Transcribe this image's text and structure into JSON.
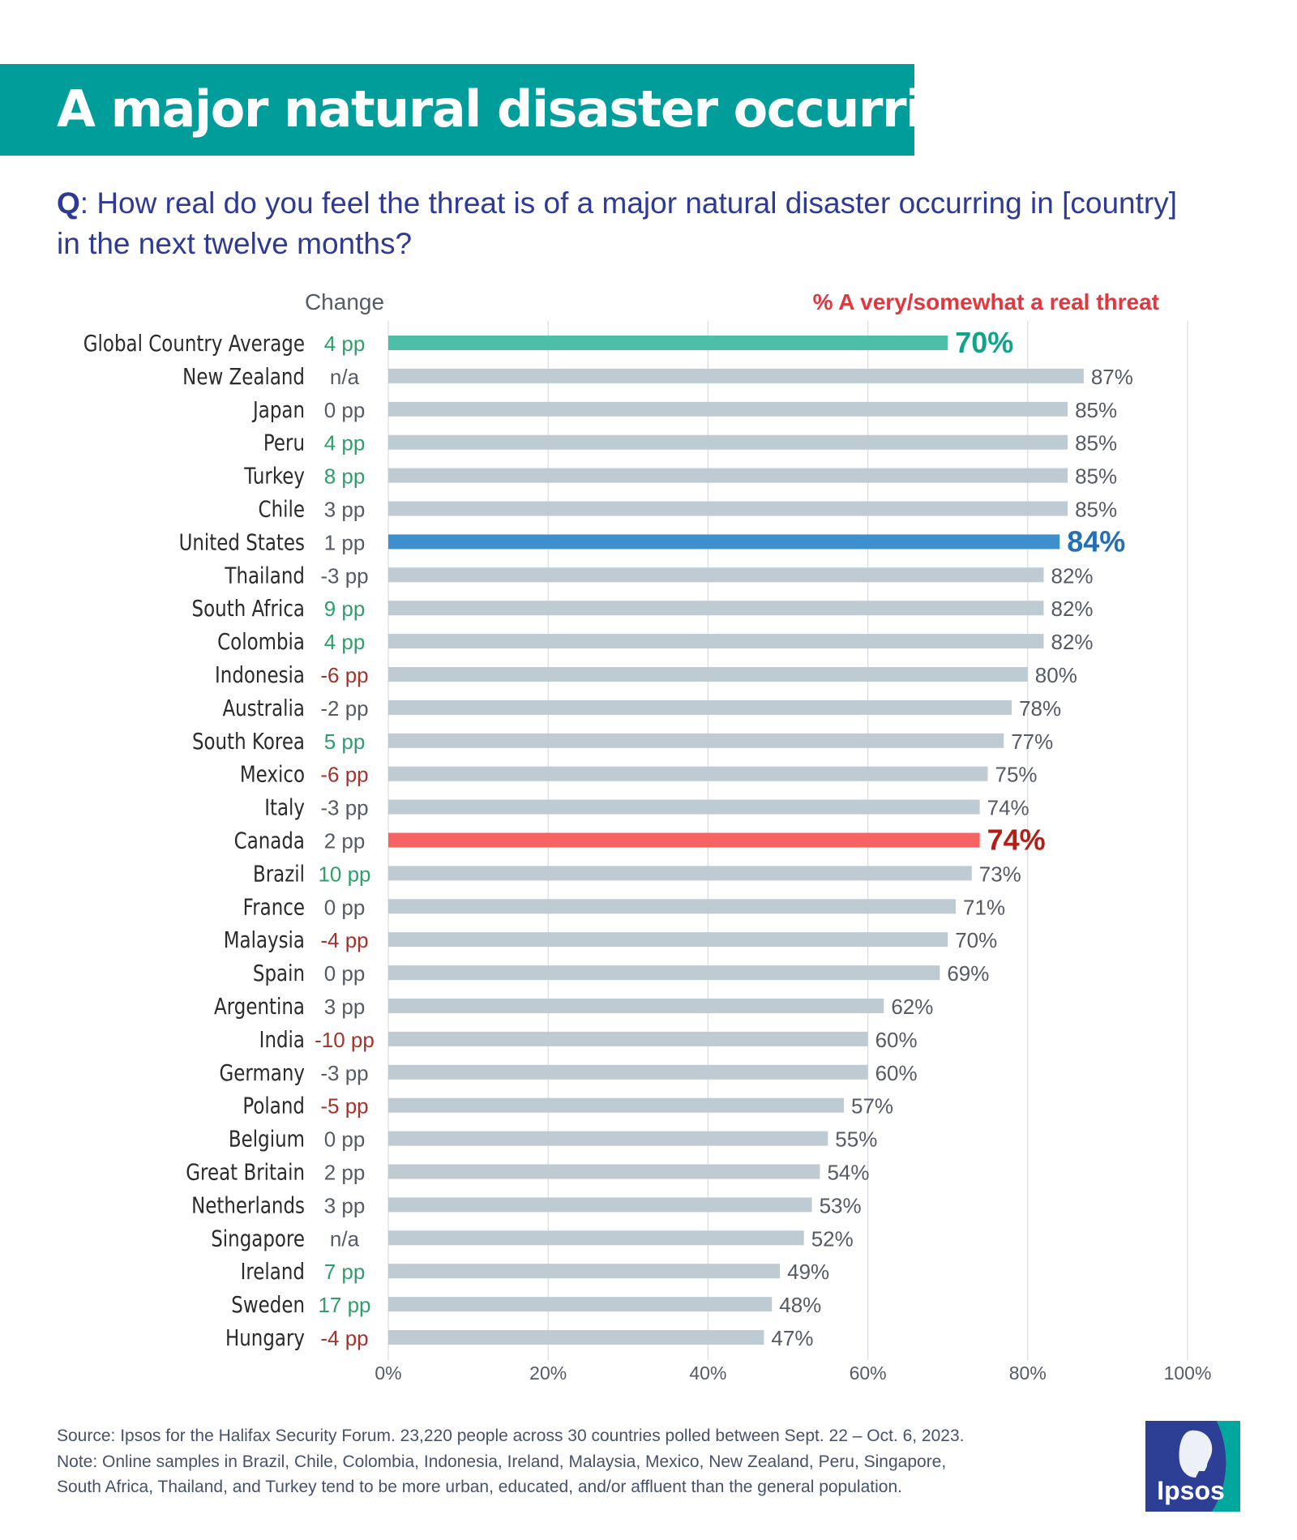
{
  "header": {
    "title": "A major natural disaster occurring"
  },
  "question": {
    "prefix": "Q",
    "text": ": How real do you feel the threat is of a major natural disaster occurring in [country] in the next twelve months?"
  },
  "chart_data": {
    "type": "bar",
    "orientation": "horizontal",
    "change_column_label": "Change",
    "value_column_label": "% A very/somewhat a real threat",
    "xlim": [
      0,
      100
    ],
    "x_ticks": [
      "0%",
      "20%",
      "40%",
      "60%",
      "80%",
      "100%"
    ],
    "grid": true,
    "categories": [
      "Global Country Average",
      "New Zealand",
      "Japan",
      "Peru",
      "Turkey",
      "Chile",
      "United States",
      "Thailand",
      "South Africa",
      "Colombia",
      "Indonesia",
      "Australia",
      "South Korea",
      "Mexico",
      "Italy",
      "Canada",
      "Brazil",
      "France",
      "Malaysia",
      "Spain",
      "Argentina",
      "India",
      "Germany",
      "Poland",
      "Belgium",
      "Great Britain",
      "Netherlands",
      "Singapore",
      "Ireland",
      "Sweden",
      "Hungary"
    ],
    "values": [
      70,
      87,
      85,
      85,
      85,
      85,
      84,
      82,
      82,
      82,
      80,
      78,
      77,
      75,
      74,
      74,
      73,
      71,
      70,
      69,
      62,
      60,
      60,
      57,
      55,
      54,
      53,
      52,
      49,
      48,
      47
    ],
    "value_labels": [
      "70%",
      "87%",
      "85%",
      "85%",
      "85%",
      "85%",
      "84%",
      "82%",
      "82%",
      "82%",
      "80%",
      "78%",
      "77%",
      "75%",
      "74%",
      "74%",
      "73%",
      "71%",
      "70%",
      "69%",
      "62%",
      "60%",
      "60%",
      "57%",
      "55%",
      "54%",
      "53%",
      "52%",
      "49%",
      "48%",
      "47%"
    ],
    "changes": [
      "4 pp",
      "n/a",
      "0 pp",
      "4 pp",
      "8 pp",
      "3 pp",
      "1 pp",
      "-3 pp",
      "9 pp",
      "4 pp",
      "-6 pp",
      "-2 pp",
      "5 pp",
      "-6 pp",
      "-3 pp",
      "2 pp",
      "10 pp",
      "0 pp",
      "-4 pp",
      "0 pp",
      "3 pp",
      "-10 pp",
      "-3 pp",
      "-5 pp",
      "0 pp",
      "2 pp",
      "3 pp",
      "n/a",
      "7 pp",
      "17 pp",
      "-4 pp"
    ],
    "highlights": {
      "Global Country Average": {
        "bar": "#4dbfa8",
        "label": "#12a48a"
      },
      "United States": {
        "bar": "#3e8fce",
        "label": "#2470b3"
      },
      "Canada": {
        "bar": "#f76262",
        "label": "#b31f15"
      }
    },
    "colors": {
      "default_bar": "#bfcbd3",
      "default_label": "#555a64",
      "change_positive": "#2e9e6b",
      "change_negative": "#a5332b",
      "change_neutral": "#555a64",
      "value_column_label": "#e3363e"
    }
  },
  "footer": {
    "lines": [
      "Source: Ipsos for the Halifax Security Forum. 23,220 people across 30 countries polled between Sept. 22 – Oct. 6, 2023.",
      "Note: Online samples in Brazil, Chile, Colombia, Indonesia, Ireland, Malaysia, Mexico, New Zealand, Peru, Singapore,",
      "South Africa, Thailand, and Turkey tend to be more urban, educated, and/or affluent than the general population."
    ]
  },
  "logo": {
    "text": "Ipsos",
    "color": "#2d3e95",
    "accent": "#00a79d",
    "icon": "ipsos-logo-icon"
  }
}
